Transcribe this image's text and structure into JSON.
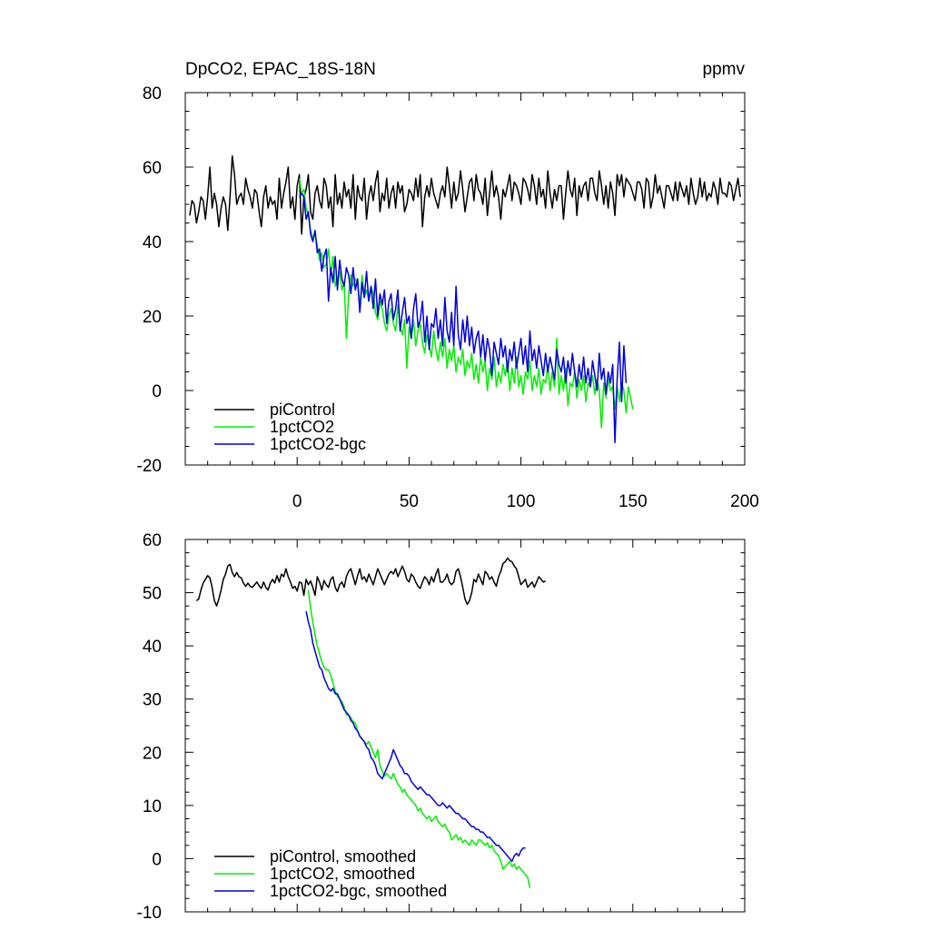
{
  "chart_data": [
    {
      "type": "line",
      "title_left": "DpCO2, EPAC_18S-18N",
      "title_right": "ppmv",
      "xlim": [
        -50,
        200
      ],
      "ylim": [
        -20,
        80
      ],
      "xticks": [
        0,
        50,
        100,
        150,
        200
      ],
      "yticks": [
        -20,
        0,
        20,
        40,
        60,
        80
      ],
      "x_tick_labels_shown": true,
      "series": [
        {
          "name": "piControl",
          "color": "#000000",
          "x_start": -48,
          "values": [
            47,
            51,
            50,
            45,
            48,
            52,
            51,
            46,
            52,
            60,
            49,
            53,
            50,
            44,
            49,
            52,
            50,
            43,
            52,
            63,
            58,
            50,
            52,
            53,
            50,
            57,
            54,
            52,
            49,
            54,
            53,
            48,
            44,
            52,
            55,
            49,
            52,
            50,
            51,
            46,
            57,
            49,
            53,
            56,
            60,
            49,
            52,
            46,
            55,
            58,
            42,
            52,
            54,
            58,
            48,
            46,
            53,
            55,
            51,
            49,
            57,
            55,
            49,
            52,
            44,
            58,
            50,
            53,
            49,
            56,
            52,
            54,
            49,
            58,
            46,
            55,
            52,
            51,
            57,
            46,
            52,
            55,
            51,
            56,
            59,
            48,
            53,
            51,
            57,
            49,
            53,
            55,
            49,
            56,
            53,
            55,
            48,
            50,
            54,
            53,
            51,
            57,
            52,
            58,
            44,
            52,
            55,
            52,
            57,
            53,
            51,
            49,
            53,
            55,
            52,
            60,
            55,
            49,
            56,
            51,
            53,
            59,
            54,
            48,
            52,
            56,
            57,
            51,
            58,
            54,
            53,
            50,
            57,
            47,
            53,
            59,
            52,
            55,
            52,
            46,
            54,
            52,
            55,
            58,
            51,
            56,
            55,
            53,
            50,
            57,
            56,
            54,
            51,
            58,
            55,
            50,
            57,
            52,
            54,
            49,
            59,
            53,
            49,
            54,
            51,
            55,
            55,
            46,
            53,
            59,
            54,
            52,
            57,
            47,
            55,
            52,
            55,
            56,
            51,
            57,
            57,
            53,
            51,
            59,
            55,
            50,
            55,
            49,
            56,
            53,
            47,
            58,
            55,
            58,
            52,
            57,
            56,
            55,
            53,
            51,
            56,
            56,
            54,
            49,
            57,
            56,
            49,
            52,
            58,
            53,
            55,
            52,
            49,
            55,
            55,
            53,
            51,
            56,
            51,
            56,
            54,
            52,
            55,
            50,
            57,
            53,
            50,
            52,
            57,
            52,
            56,
            51,
            53,
            52,
            56,
            54,
            50,
            57,
            53,
            53,
            52,
            56,
            55,
            51,
            54,
            57,
            52
          ]
        },
        {
          "name": "1pctCO2",
          "color": "#00ee00",
          "x_start": 1,
          "values": [
            57,
            53,
            54,
            49,
            47,
            43,
            41,
            42,
            39,
            35,
            37,
            33,
            34,
            38,
            31,
            36,
            28,
            30,
            32,
            27,
            29,
            14,
            26,
            31,
            28,
            30,
            29,
            22,
            31,
            25,
            27,
            24,
            28,
            26,
            21,
            19,
            24,
            22,
            18,
            16,
            20,
            22,
            18,
            16,
            23,
            17,
            15,
            19,
            6,
            17,
            14,
            19,
            12,
            16,
            18,
            13,
            10,
            15,
            12,
            9,
            16,
            11,
            8,
            13,
            9,
            14,
            6,
            11,
            8,
            12,
            5,
            9,
            7,
            11,
            4,
            8,
            6,
            10,
            3,
            7,
            2,
            9,
            5,
            8,
            0,
            6,
            3,
            9,
            1,
            5,
            2,
            7,
            4,
            8,
            0,
            6,
            2,
            9,
            1,
            4,
            -1,
            5,
            3,
            8,
            0,
            4,
            1,
            6,
            -1,
            3,
            2,
            7,
            0,
            5,
            1,
            14,
            -1,
            4,
            0,
            6,
            -4,
            2,
            1,
            5,
            -2,
            3,
            0,
            4,
            -3,
            2,
            1,
            4,
            -1,
            3,
            0,
            -10,
            2,
            -2,
            3,
            0,
            1,
            -5,
            1,
            -3,
            2,
            0,
            -6,
            1,
            -2,
            -5
          ]
        },
        {
          "name": "1pctCO2-bgc",
          "color": "#0000dd",
          "x_start": 1,
          "values": [
            52,
            53,
            52,
            46,
            48,
            42,
            40,
            43,
            37,
            38,
            32,
            36,
            38,
            24,
            33,
            29,
            36,
            27,
            35,
            30,
            28,
            33,
            31,
            26,
            33,
            27,
            30,
            21,
            29,
            25,
            32,
            24,
            28,
            22,
            30,
            20,
            26,
            23,
            27,
            18,
            24,
            26,
            19,
            22,
            27,
            16,
            21,
            25,
            18,
            20,
            14,
            22,
            26,
            17,
            19,
            24,
            13,
            20,
            11,
            18,
            17,
            22,
            14,
            19,
            12,
            25,
            16,
            13,
            21,
            12,
            28,
            15,
            11,
            19,
            13,
            20,
            12,
            17,
            10,
            14,
            16,
            9,
            15,
            8,
            14,
            11,
            4,
            13,
            10,
            7,
            14,
            9,
            12,
            5,
            11,
            8,
            13,
            6,
            10,
            14,
            7,
            12,
            5,
            16,
            8,
            11,
            6,
            12,
            8,
            4,
            10,
            5,
            9,
            6,
            3,
            11,
            7,
            5,
            9,
            2,
            8,
            4,
            10,
            5,
            1,
            7,
            3,
            9,
            2,
            6,
            1,
            8,
            4,
            0,
            10,
            3,
            6,
            -1,
            5,
            2,
            7,
            -14,
            3,
            13,
            -3,
            12,
            2
          ]
        }
      ],
      "legend": [
        "piControl",
        "1pctCO2",
        "1pctCO2-bgc"
      ],
      "legend_position": "bottom-left"
    },
    {
      "type": "line",
      "title_left": "",
      "title_right": "",
      "xlim": [
        -50,
        200
      ],
      "ylim": [
        -10,
        60
      ],
      "xticks": [
        0,
        50,
        100,
        150,
        200
      ],
      "yticks": [
        -10,
        0,
        10,
        20,
        30,
        40,
        50,
        60
      ],
      "x_tick_labels_shown": false,
      "series": [
        {
          "name": "piControl, smoothed",
          "color": "#000000",
          "x_start": -45,
          "values": [
            48.5,
            48.8,
            50.5,
            51.8,
            52.5,
            53.2,
            52.8,
            51.0,
            48.5,
            47.5,
            48.8,
            50.5,
            52.5,
            53.5,
            55.0,
            55.3,
            53.8,
            53.0,
            53.8,
            53.0,
            52.8,
            51.8,
            51.2,
            51.8,
            51.2,
            51.0,
            51.5,
            52.0,
            51.3,
            50.8,
            52.0,
            51.0,
            50.5,
            51.8,
            52.5,
            51.8,
            53.2,
            52.0,
            53.5,
            53.0,
            54.5,
            53.0,
            52.0,
            50.8,
            51.2,
            50.3,
            52.0,
            51.8,
            49.5,
            52.5,
            51.5,
            52.2,
            51.0,
            49.5,
            53.0,
            52.0,
            50.5,
            52.3,
            51.5,
            51.0,
            52.5,
            53.0,
            51.0,
            50.2,
            51.5,
            52.0,
            51.0,
            53.0,
            54.0,
            54.5,
            53.0,
            51.5,
            53.2,
            54.5,
            52.5,
            53.0,
            52.0,
            53.5,
            52.5,
            51.5,
            53.0,
            54.5,
            53.5,
            52.5,
            51.5,
            52.5,
            53.5,
            54.0,
            53.5,
            54.5,
            53.0,
            54.0,
            55.0,
            54.0,
            52.5,
            52.0,
            53.5,
            53.0,
            52.0,
            51.2,
            50.8,
            52.0,
            53.0,
            52.5,
            51.5,
            53.0,
            52.0,
            53.5,
            54.5,
            52.0,
            52.0,
            52.5,
            53.5,
            52.0,
            51.5,
            52.0,
            54.0,
            54.5,
            53.0,
            51.0,
            48.8,
            47.8,
            48.5,
            50.0,
            52.5,
            52.0,
            53.5,
            52.5,
            51.5,
            54.0,
            53.5,
            52.5,
            53.0,
            52.0,
            51.2,
            53.0,
            54.0,
            55.5,
            55.8,
            56.5,
            56.0,
            55.8,
            55.0,
            54.5,
            53.0,
            51.5,
            52.0,
            52.5,
            51.0,
            51.5,
            52.0,
            51.0,
            52.0,
            53.0,
            52.5,
            52.0,
            52.2
          ]
        },
        {
          "name": "1pctCO2, smoothed",
          "color": "#00ee00",
          "x_start": 5,
          "values": [
            50.5,
            47,
            44.5,
            42,
            40,
            38.5,
            37,
            36,
            35.5,
            35.5,
            34.5,
            33,
            31.5,
            30.5,
            30,
            29.5,
            28.5,
            27,
            27,
            26.5,
            25.8,
            25.5,
            24,
            23,
            22.5,
            22,
            21.5,
            22,
            21,
            20,
            19,
            20.5,
            17.5,
            16.5,
            15.5,
            16,
            15.5,
            15,
            16,
            15,
            14,
            13.5,
            12.5,
            13,
            12,
            11.5,
            11,
            10.5,
            10,
            9,
            9.5,
            8.5,
            8,
            7.5,
            8,
            7,
            7.5,
            8,
            7,
            6.5,
            6,
            6.5,
            5.5,
            5,
            3.5,
            4,
            4.5,
            3.5,
            4,
            3,
            3.5,
            3,
            2.5,
            3.5,
            3,
            2.5,
            3.5,
            3.5,
            3,
            2.5,
            3,
            2,
            2.5,
            1.5,
            1,
            0.5,
            -0.5,
            -2,
            -1.5,
            -1,
            -0.5,
            -1.5,
            -1,
            -2,
            -1.5,
            -2,
            -2.5,
            -3,
            -3.5,
            -5.5
          ]
        },
        {
          "name": "1pctCO2-bgc, smoothed",
          "color": "#0000dd",
          "x_start": 4,
          "values": [
            46.5,
            44.5,
            43,
            40.5,
            39,
            37.5,
            36,
            35.5,
            34,
            33,
            32,
            31.5,
            32,
            31,
            31,
            30,
            29,
            28,
            27.5,
            27,
            26,
            25.5,
            24.5,
            24,
            23,
            22.5,
            22,
            21,
            20.5,
            19,
            18.5,
            17.5,
            16,
            15.5,
            15,
            16,
            17,
            18,
            19,
            20.5,
            19.5,
            18.5,
            17.5,
            17,
            16,
            16,
            15.5,
            14.5,
            14,
            13.5,
            13,
            13.5,
            13,
            12.5,
            12,
            12,
            11.5,
            11,
            10.5,
            10,
            10,
            10.5,
            10,
            9.5,
            10,
            9.5,
            9,
            8.5,
            8.5,
            8,
            7.5,
            7.5,
            7,
            6.5,
            6,
            6,
            5.5,
            5.5,
            5,
            5,
            4.5,
            4,
            4,
            3.5,
            3,
            2.5,
            2.5,
            2,
            1.5,
            1,
            0.5,
            0,
            -0.5,
            0.5,
            1,
            0.5,
            1.5,
            2,
            2
          ]
        }
      ],
      "legend": [
        "piControl, smoothed",
        "1pctCO2, smoothed",
        "1pctCO2-bgc, smoothed"
      ],
      "legend_position": "bottom-left"
    }
  ]
}
